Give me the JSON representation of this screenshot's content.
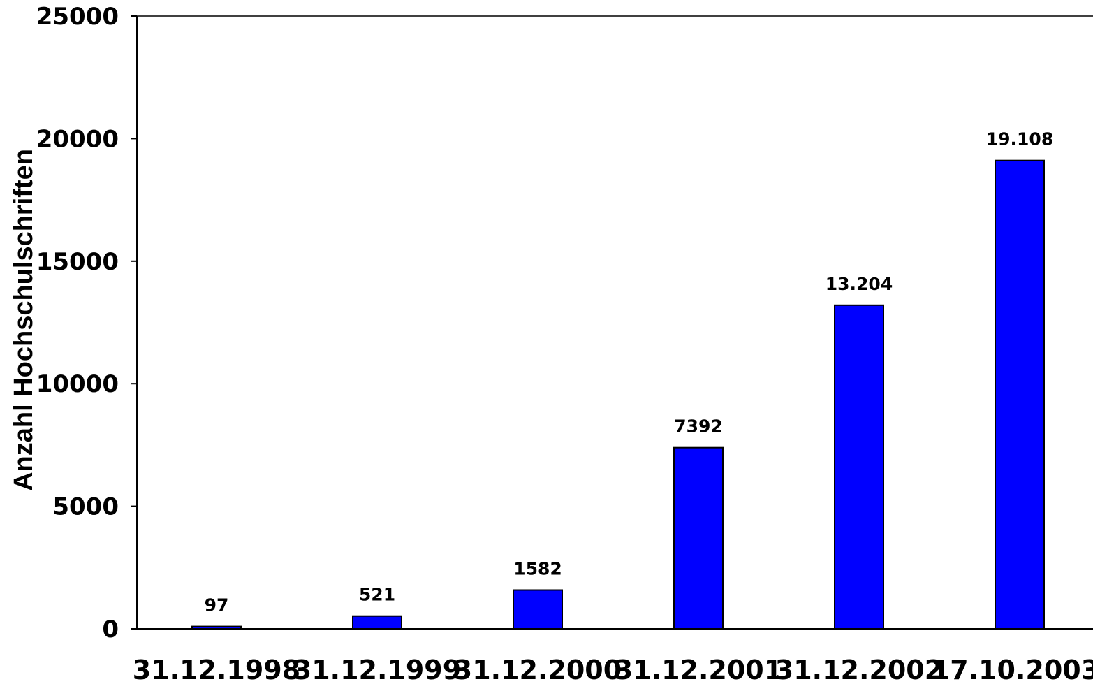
{
  "chart_data": {
    "type": "bar",
    "title": "",
    "xlabel": "",
    "ylabel": "Anzahl Hochschulschriften",
    "categories": [
      "31.12.1998",
      "31.12.1999",
      "31.12.2000",
      "31.12.2001",
      "31.12.2002",
      "17.10.2003"
    ],
    "values": [
      97,
      521,
      1582,
      7392,
      13204,
      19108
    ],
    "data_labels": [
      "97",
      "521",
      "1582",
      "7392",
      "13.204",
      "19.108"
    ],
    "ylim": [
      0,
      25000
    ],
    "yticks": [
      0,
      5000,
      10000,
      15000,
      20000,
      25000
    ],
    "ytick_labels": [
      "0",
      "5000",
      "10000",
      "15000",
      "20000",
      "25000"
    ],
    "grid": false,
    "legend": "none",
    "colors": {
      "bar": "#0000ff",
      "bar_edge": "#000000",
      "axis": "#000000"
    }
  }
}
